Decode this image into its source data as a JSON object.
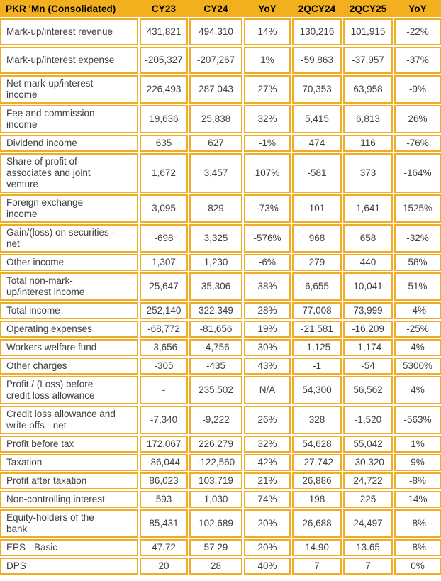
{
  "colors": {
    "header_bg": "#F2B01E",
    "cell_border": "#EFAC24",
    "header_text": "#000000",
    "cell_text": "#3F3F3F"
  },
  "table": {
    "columns": [
      "PKR 'Mn (Consolidated)",
      "CY23",
      "CY24",
      "YoY",
      "2QCY24",
      "2QCY25",
      "YoY"
    ],
    "rows": [
      {
        "label": "Mark-up/interest revenue",
        "values": [
          "431,821",
          "494,310",
          "14%",
          "130,216",
          "101,915",
          "-22%"
        ]
      },
      {
        "label": "Mark-up/interest expense",
        "values": [
          "-205,327",
          "-207,267",
          "1%",
          "-59,863",
          "-37,957",
          "-37%"
        ]
      },
      {
        "label": "Net mark-up/interest\nincome",
        "values": [
          "226,493",
          "287,043",
          "27%",
          "70,353",
          "63,958",
          "-9%"
        ]
      },
      {
        "label": "Fee and commission\nincome",
        "values": [
          "19,636",
          "25,838",
          "32%",
          "5,415",
          "6,813",
          "26%"
        ]
      },
      {
        "label": "Dividend income",
        "values": [
          "635",
          "627",
          "-1%",
          "474",
          "116",
          "-76%"
        ]
      },
      {
        "label": "Share of profit of\nassociates and joint\nventure",
        "values": [
          "1,672",
          "3,457",
          "107%",
          "-581",
          "373",
          "-164%"
        ]
      },
      {
        "label": "Foreign exchange\nincome",
        "values": [
          "3,095",
          "829",
          "-73%",
          "101",
          "1,641",
          "1525%"
        ]
      },
      {
        "label": "Gain/(loss) on securities -\nnet",
        "values": [
          "-698",
          "3,325",
          "-576%",
          "968",
          "658",
          "-32%"
        ]
      },
      {
        "label": "Other income",
        "values": [
          "1,307",
          "1,230",
          "-6%",
          "279",
          "440",
          "58%"
        ]
      },
      {
        "label": "Total non-mark-\nup/interest income",
        "values": [
          "25,647",
          "35,306",
          "38%",
          "6,655",
          "10,041",
          "51%"
        ]
      },
      {
        "label": "Total income",
        "values": [
          "252,140",
          "322,349",
          "28%",
          "77,008",
          "73,999",
          "-4%"
        ]
      },
      {
        "label": "Operating expenses",
        "values": [
          "-68,772",
          "-81,656",
          "19%",
          "-21,581",
          "-16,209",
          "-25%"
        ]
      },
      {
        "label": "Workers welfare fund",
        "values": [
          "-3,656",
          "-4,756",
          "30%",
          "-1,125",
          "-1,174",
          "4%"
        ]
      },
      {
        "label": "Other charges",
        "values": [
          "-305",
          "-435",
          "43%",
          "-1",
          "-54",
          "5300%"
        ]
      },
      {
        "label": "Profit / (Loss) before\ncredit loss allowance",
        "values": [
          "-",
          "235,502",
          "N/A",
          "54,300",
          "56,562",
          "4%"
        ]
      },
      {
        "label": "Credit loss allowance and\nwrite offs - net",
        "values": [
          "-7,340",
          "-9,222",
          "26%",
          "328",
          "-1,520",
          "-563%"
        ]
      },
      {
        "label": "Profit before tax",
        "values": [
          "172,067",
          "226,279",
          "32%",
          "54,628",
          "55,042",
          "1%"
        ]
      },
      {
        "label": "Taxation",
        "values": [
          "-86,044",
          "-122,560",
          "42%",
          "-27,742",
          "-30,320",
          "9%"
        ]
      },
      {
        "label": "Profit after taxation",
        "values": [
          "86,023",
          "103,719",
          "21%",
          "26,886",
          "24,722",
          "-8%"
        ]
      },
      {
        "label": "Non-controlling interest",
        "values": [
          "593",
          "1,030",
          "74%",
          "198",
          "225",
          "14%"
        ]
      },
      {
        "label": "Equity-holders of the\nbank",
        "values": [
          "85,431",
          "102,689",
          "20%",
          "26,688",
          "24,497",
          "-8%"
        ]
      },
      {
        "label": "EPS - Basic",
        "values": [
          "47.72",
          "57.29",
          "20%",
          "14.90",
          "13.65",
          "-8%"
        ]
      },
      {
        "label": "DPS",
        "values": [
          "20",
          "28",
          "40%",
          "7",
          "7",
          "0%"
        ]
      }
    ]
  }
}
